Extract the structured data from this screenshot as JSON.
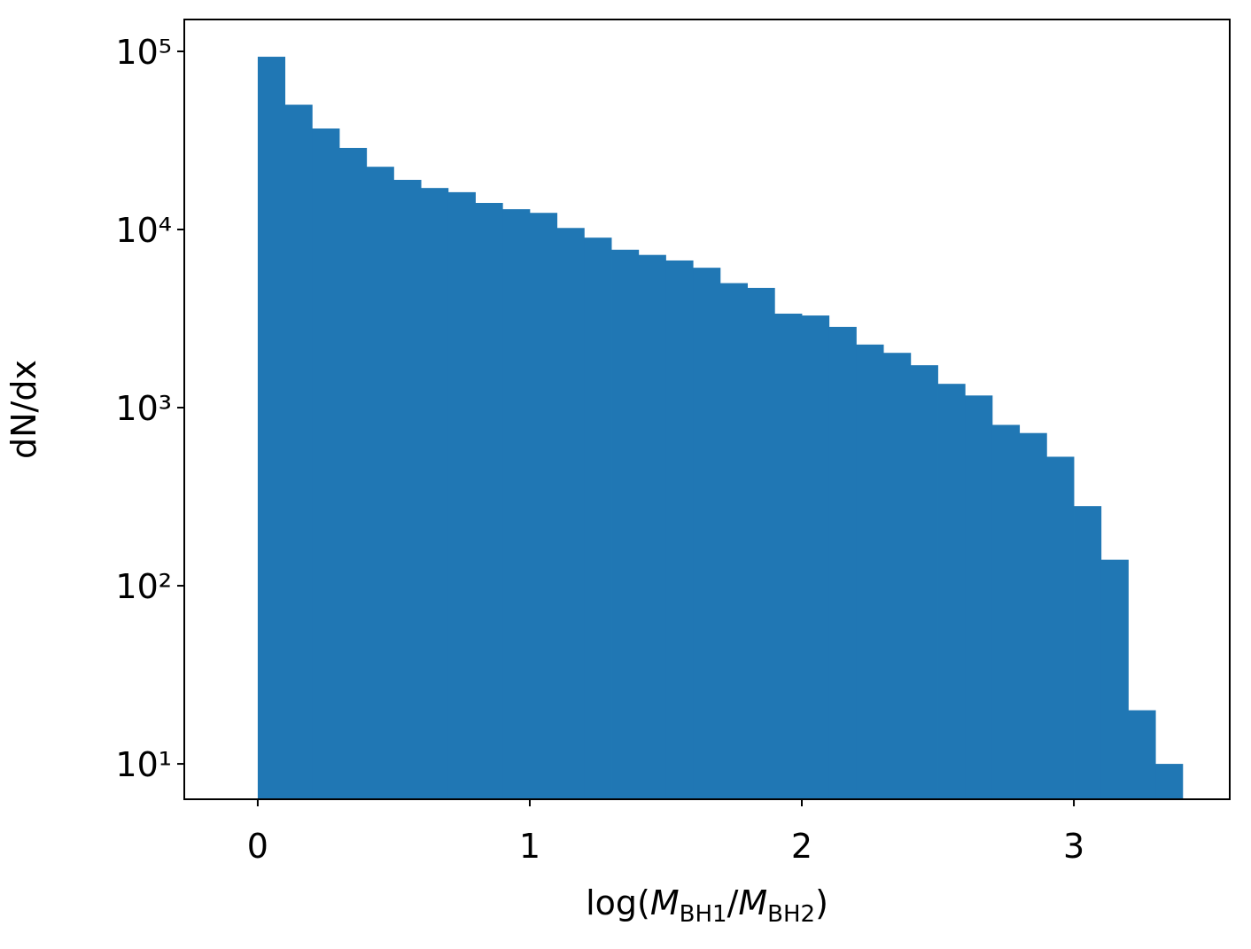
{
  "chart_data": {
    "type": "histogram",
    "xlabel": [
      "log(",
      "M",
      "BH1",
      "/",
      "M",
      "BH2",
      ")"
    ],
    "ylabel": "dN/dx",
    "bins": [
      0,
      0.1,
      0.2,
      0.3,
      0.4,
      0.5,
      0.6,
      0.7,
      0.8,
      0.9,
      1.0,
      1.1,
      1.2,
      1.3,
      1.4,
      1.5,
      1.6,
      1.7,
      1.8,
      1.9,
      2.0,
      2.1,
      2.2,
      2.3,
      2.4,
      2.5,
      2.6,
      2.7,
      2.8,
      2.9,
      3.0,
      3.1,
      3.2,
      3.3,
      3.4
    ],
    "values": [
      93300,
      50200,
      36900,
      28700,
      22500,
      19000,
      17100,
      16200,
      14100,
      13000,
      12400,
      10200,
      9000,
      7700,
      7200,
      6700,
      6100,
      5000,
      4700,
      3370,
      3290,
      2840,
      2260,
      2030,
      1730,
      1360,
      1170,
      800,
      720,
      530,
      280,
      140,
      20,
      10
    ],
    "color": "#2077b4",
    "xlim": [
      -0.27,
      3.573
    ],
    "ylim": [
      6.33,
      151000
    ],
    "ylog": true,
    "xticks": [
      0,
      1,
      2,
      3
    ],
    "yticks": [
      {
        "value": 10,
        "label": "10¹"
      },
      {
        "value": 100,
        "label": "10²"
      },
      {
        "value": 1000,
        "label": "10³"
      },
      {
        "value": 10000,
        "label": "10⁴"
      },
      {
        "value": 100000,
        "label": "10⁵"
      }
    ]
  }
}
